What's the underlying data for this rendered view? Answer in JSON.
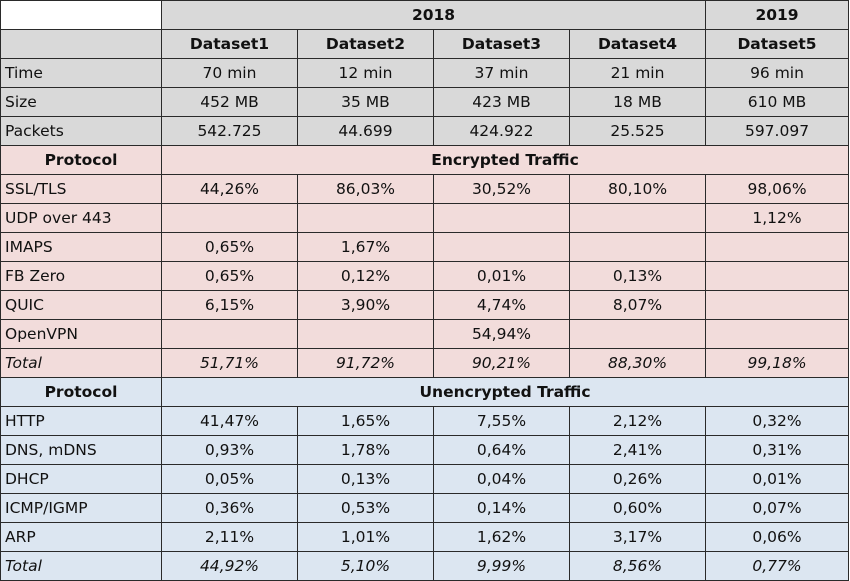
{
  "header": {
    "year_2018": "2018",
    "year_2019": "2019",
    "datasets": [
      "Dataset1",
      "Dataset2",
      "Dataset3",
      "Dataset4",
      "Dataset5"
    ]
  },
  "summary_rows": [
    {
      "label": "Time",
      "values": [
        "70 min",
        "12 min",
        "37 min",
        "21 min",
        "96 min"
      ]
    },
    {
      "label": "Size",
      "values": [
        "452 MB",
        "35 MB",
        "423 MB",
        "18 MB",
        "610 MB"
      ]
    },
    {
      "label": "Packets",
      "values": [
        "542.725",
        "44.699",
        "424.922",
        "25.525",
        "597.097"
      ]
    }
  ],
  "encrypted": {
    "protocol_label": "Protocol",
    "title": "Encrypted Traffic",
    "rows": [
      {
        "label": "SSL/TLS",
        "values": [
          "44,26%",
          "86,03%",
          "30,52%",
          "80,10%",
          "98,06%"
        ]
      },
      {
        "label": "UDP over 443",
        "values": [
          "",
          "",
          "",
          "",
          "1,12%"
        ]
      },
      {
        "label": "IMAPS",
        "values": [
          "0,65%",
          "1,67%",
          "",
          "",
          ""
        ]
      },
      {
        "label": "FB Zero",
        "values": [
          "0,65%",
          "0,12%",
          "0,01%",
          "0,13%",
          ""
        ]
      },
      {
        "label": "QUIC",
        "values": [
          "6,15%",
          "3,90%",
          "4,74%",
          "8,07%",
          ""
        ]
      },
      {
        "label": "OpenVPN",
        "values": [
          "",
          "",
          "54,94%",
          "",
          ""
        ]
      }
    ],
    "total": {
      "label": "Total",
      "values": [
        "51,71%",
        "91,72%",
        "90,21%",
        "88,30%",
        "99,18%"
      ]
    }
  },
  "unencrypted": {
    "protocol_label": "Protocol",
    "title": "Unencrypted Traffic",
    "rows": [
      {
        "label": "HTTP",
        "values": [
          "41,47%",
          "1,65%",
          "7,55%",
          "2,12%",
          "0,32%"
        ]
      },
      {
        "label": "DNS, mDNS",
        "values": [
          "0,93%",
          "1,78%",
          "0,64%",
          "2,41%",
          "0,31%"
        ]
      },
      {
        "label": "DHCP",
        "values": [
          "0,05%",
          "0,13%",
          "0,04%",
          "0,26%",
          "0,01%"
        ]
      },
      {
        "label": "ICMP/IGMP",
        "values": [
          "0,36%",
          "0,53%",
          "0,14%",
          "0,60%",
          "0,07%"
        ]
      },
      {
        "label": "ARP",
        "values": [
          "2,11%",
          "1,01%",
          "1,62%",
          "3,17%",
          "0,06%"
        ]
      }
    ],
    "total": {
      "label": "Total",
      "values": [
        "44,92%",
        "5,10%",
        "9,99%",
        "8,56%",
        "0,77%"
      ]
    }
  },
  "colors": {
    "header_bg": "#d9d9d9",
    "encrypted_bg": "#f2dcdb",
    "unencrypted_bg": "#dce6f1",
    "border": "#2a2a2a"
  }
}
